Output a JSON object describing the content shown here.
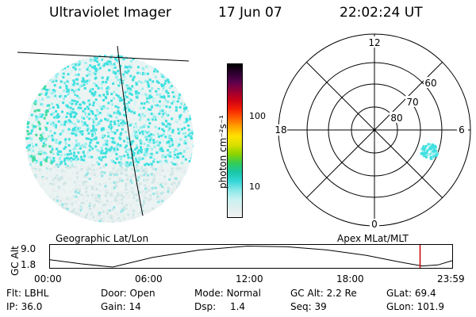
{
  "header": {
    "title": "Ultraviolet Imager",
    "date": "17 Jun 07",
    "time": "22:02:24 UT"
  },
  "geo_panel": {
    "label": "Geographic Lat/Lon"
  },
  "colorbar": {
    "unit_label": "photon cm⁻²s⁻¹",
    "ticks": [
      {
        "value": 100,
        "label": "100"
      },
      {
        "value": 10,
        "label": "10"
      }
    ],
    "scale": "log",
    "colors": [
      "#f2f2f2",
      "#dfeeee",
      "#c7f2f2",
      "#8ae8e8",
      "#35d7d7",
      "#19c7a8",
      "#32cc55",
      "#8ad400",
      "#d8e000",
      "#ffe100",
      "#ffa600",
      "#ff6000",
      "#f41f00",
      "#cc0015",
      "#960033",
      "#5d004d",
      "#2c0030",
      "#000000"
    ]
  },
  "polar_panel": {
    "label": "Apex MLat/MLT",
    "mlt_labels": {
      "top": "12",
      "right": "6",
      "bottom": "0",
      "left": "18"
    },
    "lat_labels": [
      "60",
      "70",
      "80"
    ]
  },
  "timeline": {
    "ylabel": "GC Alt",
    "ymax_label": "9.0",
    "ymin_label": "1.8",
    "ticks": [
      "00:00",
      "06:00",
      "12:00",
      "18:00",
      "23:59"
    ],
    "current_time_fraction": 0.9183,
    "marker_color": "#cc0000"
  },
  "status": {
    "flt": {
      "label": "Flt:",
      "value": "LBHL"
    },
    "ip": {
      "label": "IP:",
      "value": "36.0"
    },
    "door": {
      "label": "Door:",
      "value": "Open"
    },
    "gain": {
      "label": "Gain:",
      "value": "14"
    },
    "mode": {
      "label": "Mode:",
      "value": "Normal"
    },
    "dsp": {
      "label": "Dsp:",
      "value": "1.4"
    },
    "gcalt": {
      "label": "GC Alt:",
      "value": "2.2 Re"
    },
    "seq": {
      "label": "Seq:",
      "value": "39"
    },
    "glat": {
      "label": "GLat:",
      "value": "69.4"
    },
    "glon": {
      "label": "GLon:",
      "value": "101.9"
    }
  }
}
